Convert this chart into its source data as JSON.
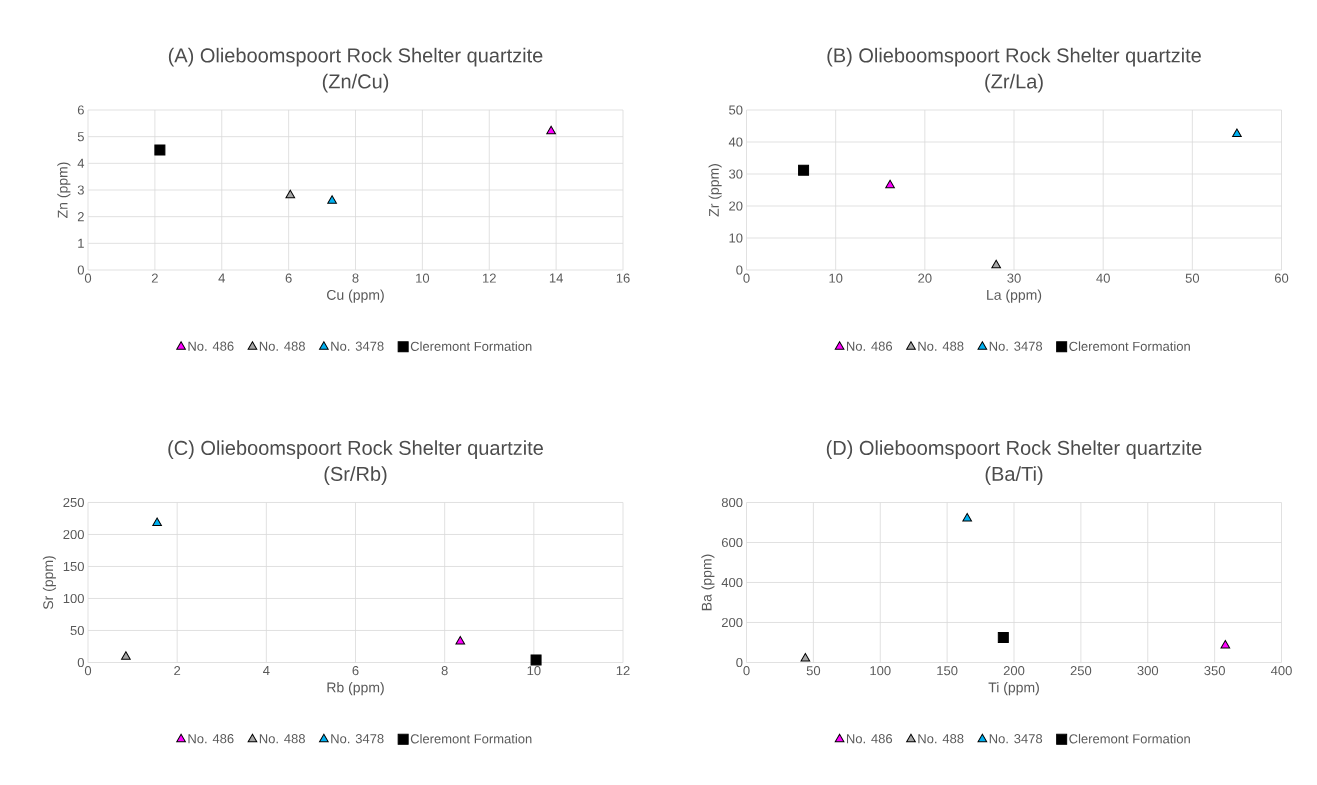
{
  "chart_data": [
    {
      "type": "scatter",
      "title": "(A) Olieboomspoort Rock Shelter quartzite",
      "subtitle": "(Zn/Cu)",
      "xlabel": "Cu (ppm)",
      "ylabel": "Zn (ppm)",
      "xlim": [
        0,
        16
      ],
      "xticks": [
        0,
        2,
        4,
        6,
        8,
        10,
        12,
        14,
        16
      ],
      "ylim": [
        0,
        6
      ],
      "yticks": [
        0,
        1,
        2,
        3,
        4,
        5,
        6
      ],
      "grid": true,
      "legend": "bottom",
      "series": [
        {
          "name": "No. 486",
          "color": "#ff00ff",
          "marker": "triangle",
          "x": [
            13.85
          ],
          "values": [
            5.2
          ]
        },
        {
          "name": "No. 488",
          "color": "#a6a6a6",
          "marker": "triangle",
          "x": [
            6.05
          ],
          "values": [
            2.8
          ]
        },
        {
          "name": "No. 3478",
          "color": "#00b0f0",
          "marker": "triangle",
          "x": [
            7.3
          ],
          "values": [
            2.6
          ]
        },
        {
          "name": "Cleremont Formation",
          "color": "#000000",
          "marker": "square",
          "x": [
            2.15
          ],
          "values": [
            4.5
          ]
        }
      ]
    },
    {
      "type": "scatter",
      "title": "(B) Olieboomspoort Rock Shelter quartzite",
      "subtitle": "(Zr/La)",
      "xlabel": "La (ppm)",
      "ylabel": "Zr (ppm)",
      "xlim": [
        0,
        60
      ],
      "xticks": [
        0,
        10,
        20,
        30,
        40,
        50,
        60
      ],
      "ylim": [
        0,
        50
      ],
      "yticks": [
        0,
        10,
        20,
        30,
        40,
        50
      ],
      "grid": true,
      "legend": "bottom",
      "series": [
        {
          "name": "No. 486",
          "color": "#ff00ff",
          "marker": "triangle",
          "x": [
            16.1
          ],
          "values": [
            26.5
          ]
        },
        {
          "name": "No. 488",
          "color": "#a6a6a6",
          "marker": "triangle",
          "x": [
            28
          ],
          "values": [
            1.5
          ]
        },
        {
          "name": "No. 3478",
          "color": "#00b0f0",
          "marker": "triangle",
          "x": [
            55
          ],
          "values": [
            42.5
          ]
        },
        {
          "name": "Cleremont Formation",
          "color": "#000000",
          "marker": "square",
          "x": [
            6.4
          ],
          "values": [
            31.2
          ]
        }
      ]
    },
    {
      "type": "scatter",
      "title": "(C) Olieboomspoort Rock Shelter quartzite",
      "subtitle": "(Sr/Rb)",
      "xlabel": "Rb (ppm)",
      "ylabel": "Sr (ppm)",
      "xlim": [
        0,
        12
      ],
      "xticks": [
        0,
        2,
        4,
        6,
        8,
        10,
        12
      ],
      "ylim": [
        0,
        250
      ],
      "yticks": [
        0,
        50,
        100,
        150,
        200,
        250
      ],
      "grid": true,
      "legend": "bottom",
      "series": [
        {
          "name": "No. 486",
          "color": "#ff00ff",
          "marker": "triangle",
          "x": [
            8.35
          ],
          "values": [
            33
          ]
        },
        {
          "name": "No. 488",
          "color": "#a6a6a6",
          "marker": "triangle",
          "x": [
            0.85
          ],
          "values": [
            9
          ]
        },
        {
          "name": "No. 3478",
          "color": "#00b0f0",
          "marker": "triangle",
          "x": [
            1.55
          ],
          "values": [
            218
          ]
        },
        {
          "name": "Cleremont Formation",
          "color": "#000000",
          "marker": "square",
          "x": [
            10.05
          ],
          "values": [
            4
          ]
        }
      ]
    },
    {
      "type": "scatter",
      "title": "(D) Olieboomspoort Rock Shelter quartzite",
      "subtitle": "(Ba/Ti)",
      "xlabel": "Ti (ppm)",
      "ylabel": "Ba (ppm)",
      "xlim": [
        0,
        400
      ],
      "xticks": [
        0,
        50,
        100,
        150,
        200,
        250,
        300,
        350,
        400
      ],
      "ylim": [
        0,
        800
      ],
      "yticks": [
        0,
        200,
        400,
        600,
        800
      ],
      "grid": true,
      "legend": "bottom",
      "series": [
        {
          "name": "No. 486",
          "color": "#ff00ff",
          "marker": "triangle",
          "x": [
            358
          ],
          "values": [
            85
          ]
        },
        {
          "name": "No. 488",
          "color": "#a6a6a6",
          "marker": "triangle",
          "x": [
            44
          ],
          "values": [
            20
          ]
        },
        {
          "name": "No. 3478",
          "color": "#00b0f0",
          "marker": "triangle",
          "x": [
            165
          ],
          "values": [
            720
          ]
        },
        {
          "name": "Cleremont Formation",
          "color": "#000000",
          "marker": "square",
          "x": [
            192
          ],
          "values": [
            125
          ]
        }
      ]
    }
  ]
}
